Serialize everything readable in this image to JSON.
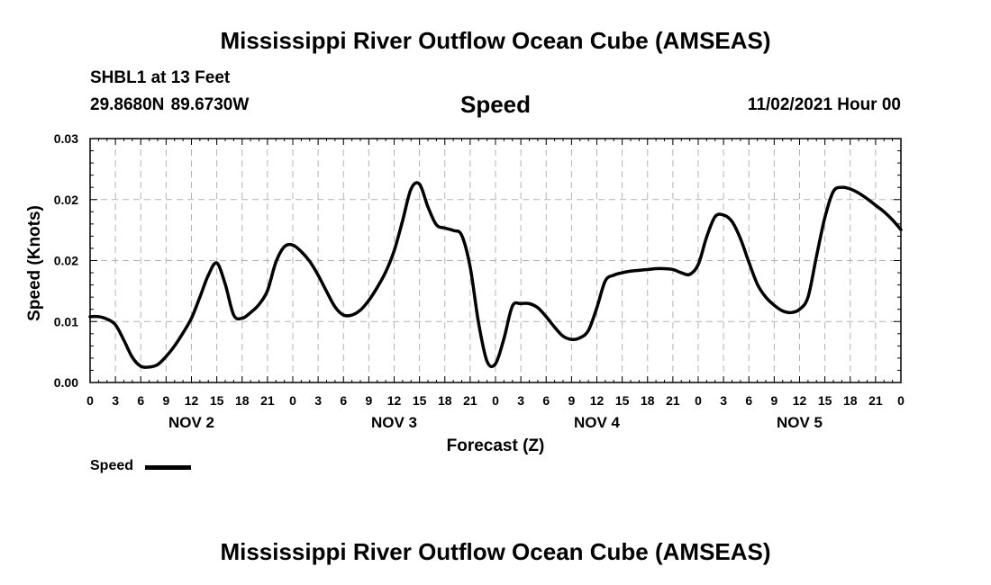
{
  "header": {
    "title": "Mississippi River Outflow Ocean Cube (AMSEAS)",
    "station": "SHBL1 at 13 Feet",
    "coords": "29.8680N  89.6730W",
    "subtitle": "Speed",
    "runtime": "11/02/2021 Hour 00"
  },
  "footer": {
    "title": "Mississippi River Outflow Ocean Cube (AMSEAS)"
  },
  "legend": {
    "label": "Speed"
  },
  "colors": {
    "line": "#000000",
    "grid": "#b3b3b3"
  },
  "chart_data": {
    "type": "line",
    "title": "Speed",
    "xlabel": "Forecast (Z)",
    "ylabel": "Speed (Knots)",
    "xlim": [
      0,
      96
    ],
    "ylim": [
      0,
      0.03
    ],
    "grid": true,
    "legend_position": "bottom-left",
    "x_tick_hours": [
      0,
      3,
      6,
      9,
      12,
      15,
      18,
      21,
      24,
      27,
      30,
      33,
      36,
      39,
      42,
      45,
      48,
      51,
      54,
      57,
      60,
      63,
      66,
      69,
      72,
      75,
      78,
      81,
      84,
      87,
      90,
      93,
      96
    ],
    "x_tick_labels": [
      "0",
      "3",
      "6",
      "9",
      "12",
      "15",
      "18",
      "21",
      "0",
      "3",
      "6",
      "9",
      "12",
      "15",
      "18",
      "21",
      "0",
      "3",
      "6",
      "9",
      "12",
      "15",
      "18",
      "21",
      "0",
      "3",
      "6",
      "9",
      "12",
      "15",
      "18",
      "21",
      "0"
    ],
    "day_labels": [
      {
        "hour": 12,
        "label": "NOV 2"
      },
      {
        "hour": 36,
        "label": "NOV 3"
      },
      {
        "hour": 60,
        "label": "NOV 4"
      },
      {
        "hour": 84,
        "label": "NOV 5"
      }
    ],
    "y_ticks": [
      0,
      0.0075,
      0.015,
      0.0225,
      0.03
    ],
    "y_tick_labels": [
      "0.00",
      "0.01",
      "0.02",
      "0.02",
      "0.03"
    ],
    "series": [
      {
        "name": "Speed",
        "x": [
          0,
          1,
          2,
          3,
          4,
          5,
          6,
          7,
          8,
          9,
          10,
          11,
          12,
          13,
          14,
          15,
          16,
          17,
          18,
          19,
          20,
          21,
          22,
          23,
          24,
          25,
          26,
          27,
          28,
          29,
          30,
          31,
          32,
          33,
          34,
          35,
          36,
          37,
          38,
          39,
          40,
          41,
          42,
          43,
          44,
          45,
          46,
          47,
          48,
          49,
          50,
          51,
          52,
          53,
          54,
          55,
          56,
          57,
          58,
          59,
          60,
          61,
          62,
          63,
          64,
          65,
          66,
          67,
          68,
          69,
          70,
          71,
          72,
          73,
          74,
          75,
          76,
          77,
          78,
          79,
          80,
          81,
          82,
          83,
          84,
          85,
          86,
          87,
          88,
          89,
          90,
          91,
          92,
          93,
          94,
          95,
          96
        ],
        "values": [
          0.0081,
          0.0081,
          0.0078,
          0.0071,
          0.0052,
          0.0031,
          0.002,
          0.0019,
          0.0022,
          0.0032,
          0.0045,
          0.0061,
          0.0079,
          0.0105,
          0.0132,
          0.0147,
          0.0121,
          0.0083,
          0.0079,
          0.0086,
          0.0096,
          0.0113,
          0.0148,
          0.0167,
          0.0169,
          0.0161,
          0.0149,
          0.0132,
          0.0112,
          0.0093,
          0.0083,
          0.0083,
          0.0089,
          0.0101,
          0.0117,
          0.0136,
          0.0162,
          0.0199,
          0.0238,
          0.0244,
          0.0216,
          0.0194,
          0.019,
          0.0187,
          0.0181,
          0.0142,
          0.0073,
          0.0026,
          0.0023,
          0.0054,
          0.0094,
          0.0097,
          0.0097,
          0.0092,
          0.0081,
          0.0068,
          0.0057,
          0.0053,
          0.0055,
          0.0064,
          0.0092,
          0.0125,
          0.0132,
          0.0135,
          0.0137,
          0.0138,
          0.0139,
          0.014,
          0.014,
          0.0139,
          0.0135,
          0.0133,
          0.0145,
          0.0179,
          0.0204,
          0.0206,
          0.0198,
          0.0177,
          0.0148,
          0.0121,
          0.0105,
          0.0095,
          0.0088,
          0.0086,
          0.009,
          0.0105,
          0.0155,
          0.0203,
          0.0235,
          0.024,
          0.0238,
          0.0233,
          0.0226,
          0.0218,
          0.021,
          0.02,
          0.0188
        ]
      }
    ]
  }
}
